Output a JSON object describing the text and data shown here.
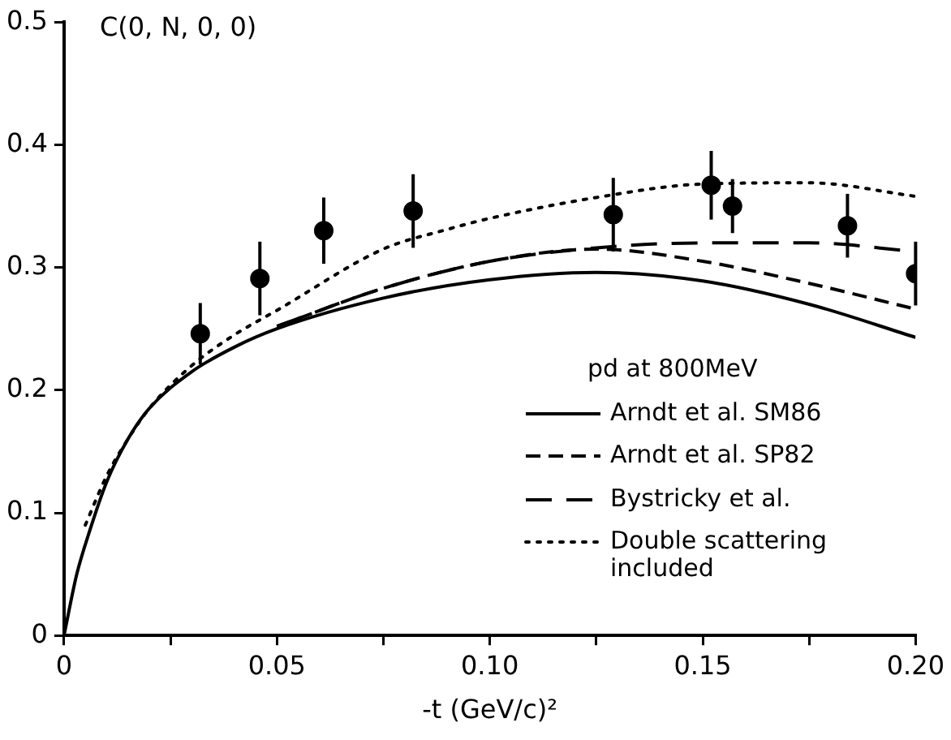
{
  "chart_data": {
    "type": "line",
    "title": "C(0, N, 0, 0)",
    "xlabel": "-t (GeV/c)²",
    "legend_title": "pd at 800MeV",
    "xlim": [
      0,
      0.2
    ],
    "ylim": [
      0,
      0.5
    ],
    "xticks": [
      0,
      {
        "value": 0.025,
        "label": null
      },
      0.05,
      {
        "value": 0.075,
        "label": null
      },
      {
        "value": 0.1,
        "label": "0.10"
      },
      {
        "value": 0.125,
        "label": null
      },
      {
        "value": 0.15,
        "label": "0.15"
      },
      {
        "value": 0.175,
        "label": null
      },
      {
        "value": 0.2,
        "label": "0.20"
      }
    ],
    "yticks": [
      0,
      0.1,
      0.2,
      0.3,
      0.4,
      0.5
    ],
    "grid": false,
    "legend": "bottom right",
    "series": [
      {
        "type": "scatter",
        "color": "#000000",
        "marker": "circle",
        "x": [
          0.032,
          0.046,
          0.061,
          0.082,
          0.129,
          0.152,
          0.157,
          0.184,
          0.2
        ],
        "values": [
          0.246,
          0.291,
          0.33,
          0.346,
          0.343,
          0.367,
          0.35,
          0.334,
          0.295
        ],
        "errors": [
          0.025,
          0.03,
          0.027,
          0.03,
          0.03,
          0.028,
          0.022,
          0.026,
          0.026
        ]
      },
      {
        "name": "Arndt et al. SM86",
        "color": "#000000",
        "line_style": "solid",
        "marker": "none",
        "x": [
          0,
          0.003,
          0.006,
          0.01,
          0.015,
          0.02,
          0.03,
          0.04,
          0.05,
          0.075,
          0.1,
          0.125,
          0.15,
          0.175,
          0.2
        ],
        "values": [
          0,
          0.05,
          0.085,
          0.125,
          0.16,
          0.185,
          0.215,
          0.235,
          0.25,
          0.275,
          0.29,
          0.296,
          0.289,
          0.27,
          0.243
        ]
      },
      {
        "name": "Arndt et al. SP82",
        "color": "#000000",
        "line_style": "dashed",
        "marker": "none",
        "x": [
          0.05,
          0.075,
          0.1,
          0.125,
          0.15,
          0.175,
          0.2
        ],
        "values": [
          0.252,
          0.283,
          0.305,
          0.315,
          0.305,
          0.287,
          0.266
        ]
      },
      {
        "name": "Bystricky et al.",
        "color": "#000000",
        "line_style": "dashed",
        "marker": "none",
        "x": [
          0.05,
          0.075,
          0.1,
          0.125,
          0.15,
          0.175,
          0.2
        ],
        "values": [
          0.252,
          0.283,
          0.305,
          0.316,
          0.32,
          0.32,
          0.313
        ]
      },
      {
        "name": "Double scattering included",
        "color": "#000000",
        "line_style": "dotted",
        "marker": "none",
        "x": [
          0.005,
          0.01,
          0.015,
          0.02,
          0.03,
          0.04,
          0.05,
          0.075,
          0.09,
          0.1,
          0.125,
          0.15,
          0.175,
          0.2
        ],
        "values": [
          0.09,
          0.13,
          0.16,
          0.185,
          0.22,
          0.245,
          0.265,
          0.315,
          0.331,
          0.34,
          0.357,
          0.368,
          0.369,
          0.358
        ]
      }
    ]
  }
}
